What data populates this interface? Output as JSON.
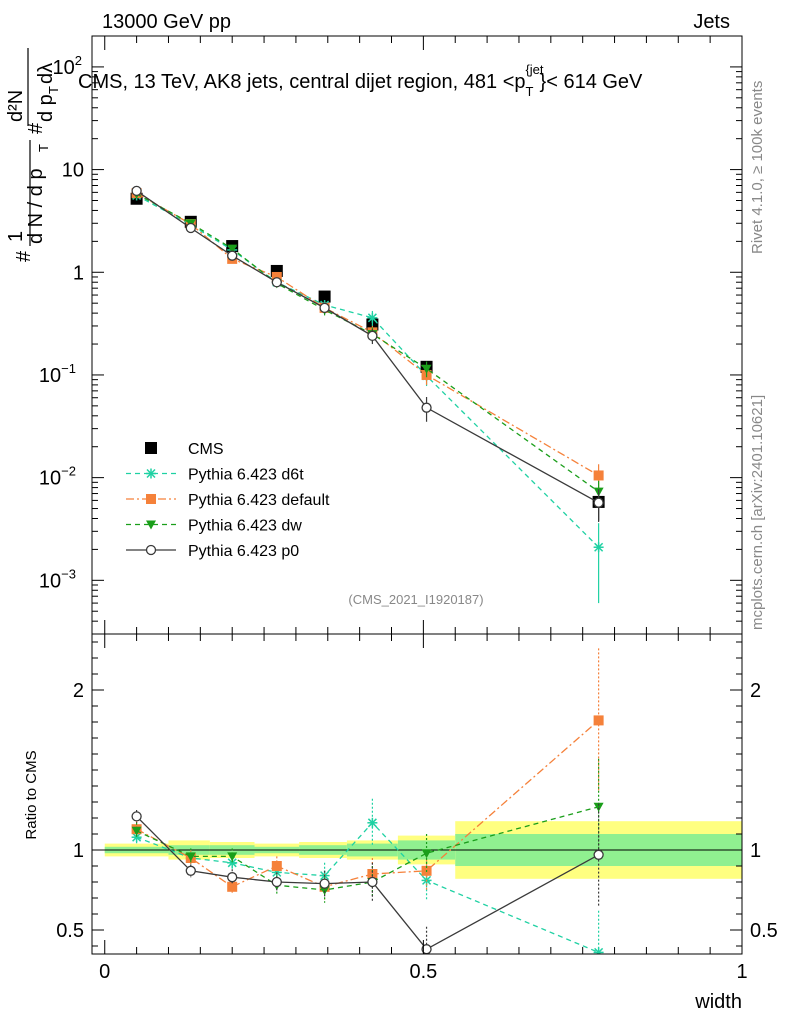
{
  "header": {
    "energy": "13000 GeV pp",
    "category": "Jets"
  },
  "chart_data": [
    {
      "type": "scatter",
      "title": "CMS, 13 TeV, AK8 jets, central dijet region, 481 < p_T^{jet} < 614 GeV",
      "title_parts": {
        "main": "CMS, 13 TeV, AK8 jets, central dijet region, 481 <p",
        "sub": "T",
        "sup": "{jet",
        "tail": "}< 614 GeV"
      },
      "ylabel_parts": {
        "num": "1",
        "den": "d N / d p",
        "den_sub": "T",
        "frac_top": "d²N",
        "frac_bot": "d p",
        "frac_bot_sub": "T",
        "frac_bot_tail": " dλ",
        "hash": "#"
      },
      "xlabel": "width",
      "yscale": "log",
      "xlim": [
        -0.02,
        1.0
      ],
      "ylim": [
        0.0003,
        200
      ],
      "yticks": [
        {
          "value": 100,
          "base": "10",
          "exp": "2"
        },
        {
          "value": 10,
          "base": "10",
          "exp": ""
        },
        {
          "value": 1,
          "base": "1",
          "exp": ""
        },
        {
          "value": 0.1,
          "base": "10",
          "exp": "−1"
        },
        {
          "value": 0.01,
          "base": "10",
          "exp": "−2"
        },
        {
          "value": 0.001,
          "base": "10",
          "exp": "−3"
        }
      ],
      "watermark": "(CMS_2021_I1920187)",
      "series": [
        {
          "name": "CMS",
          "color": "#000000",
          "style": "data",
          "x": [
            0.05,
            0.135,
            0.2,
            0.27,
            0.345,
            0.42,
            0.505,
            0.775
          ],
          "y": [
            5.2,
            3.1,
            1.8,
            1.03,
            0.58,
            0.31,
            0.12,
            0.0058
          ],
          "err": [
            0.2,
            0.1,
            0.08,
            0.05,
            0.03,
            0.03,
            0.015,
            0.002
          ]
        },
        {
          "name": "Pythia 6.423 d6t",
          "color": "#1fd1a3",
          "style": "dashed",
          "marker": "star",
          "x": [
            0.05,
            0.135,
            0.2,
            0.27,
            0.345,
            0.42,
            0.505,
            0.775
          ],
          "y": [
            5.6,
            2.9,
            1.65,
            0.8,
            0.48,
            0.36,
            0.098,
            0.0021
          ],
          "err": [
            0.2,
            0.1,
            0.08,
            0.05,
            0.05,
            0.06,
            0.02,
            0.0015
          ]
        },
        {
          "name": "Pythia 6.423 default",
          "color": "#f5813a",
          "style": "dashdot",
          "marker": "square",
          "x": [
            0.05,
            0.135,
            0.2,
            0.27,
            0.345,
            0.42,
            0.505,
            0.775
          ],
          "y": [
            5.9,
            2.95,
            1.35,
            0.9,
            0.45,
            0.26,
            0.1,
            0.0105
          ],
          "err": [
            0.2,
            0.1,
            0.08,
            0.05,
            0.05,
            0.04,
            0.02,
            0.003
          ]
        },
        {
          "name": "Pythia 6.423 dw",
          "color": "#1a9e1a",
          "style": "dashed",
          "marker": "triangle",
          "x": [
            0.05,
            0.135,
            0.2,
            0.27,
            0.345,
            0.42,
            0.505,
            0.775
          ],
          "y": [
            5.8,
            3.0,
            1.7,
            0.78,
            0.43,
            0.25,
            0.115,
            0.0073
          ],
          "err": [
            0.2,
            0.1,
            0.08,
            0.05,
            0.05,
            0.04,
            0.02,
            0.002
          ]
        },
        {
          "name": "Pythia 6.423 p0",
          "color": "#3a3a3a",
          "style": "solid",
          "marker": "circle",
          "x": [
            0.05,
            0.135,
            0.2,
            0.27,
            0.345,
            0.42,
            0.505,
            0.775
          ],
          "y": [
            6.2,
            2.7,
            1.45,
            0.8,
            0.45,
            0.24,
            0.048,
            0.0057
          ],
          "err": [
            0.2,
            0.1,
            0.08,
            0.05,
            0.05,
            0.04,
            0.013,
            0.002
          ]
        }
      ]
    },
    {
      "type": "line",
      "ylabel": "Ratio to CMS",
      "xlabel": "width",
      "xlim": [
        -0.02,
        1.0
      ],
      "ylim": [
        0.35,
        2.35
      ],
      "yticks": [
        0.5,
        1,
        2
      ],
      "xticks": [
        {
          "value": 0,
          "label": "0"
        },
        {
          "value": 0.5,
          "label": "0.5"
        },
        {
          "value": 1,
          "label": "1"
        }
      ],
      "bands": [
        {
          "x0": 0.0,
          "x1": 0.1,
          "inner": 0.02,
          "outer": 0.04
        },
        {
          "x0": 0.1,
          "x1": 0.165,
          "inner": 0.03,
          "outer": 0.06
        },
        {
          "x0": 0.165,
          "x1": 0.235,
          "inner": 0.03,
          "outer": 0.05
        },
        {
          "x0": 0.235,
          "x1": 0.305,
          "inner": 0.02,
          "outer": 0.04
        },
        {
          "x0": 0.305,
          "x1": 0.38,
          "inner": 0.03,
          "outer": 0.05
        },
        {
          "x0": 0.38,
          "x1": 0.46,
          "inner": 0.04,
          "outer": 0.06
        },
        {
          "x0": 0.46,
          "x1": 0.55,
          "inner": 0.06,
          "outer": 0.09
        },
        {
          "x0": 0.55,
          "x1": 1.0,
          "inner": 0.1,
          "outer": 0.18
        }
      ],
      "series": [
        {
          "name": "Pythia 6.423 d6t",
          "color": "#1fd1a3",
          "x": [
            0.05,
            0.135,
            0.2,
            0.27,
            0.345,
            0.42,
            0.505,
            0.775
          ],
          "y": [
            1.08,
            0.95,
            0.92,
            0.86,
            0.84,
            1.17,
            0.81,
            0.36
          ],
          "err": [
            0.05,
            0.05,
            0.05,
            0.06,
            0.08,
            0.15,
            0.12,
            0.26
          ]
        },
        {
          "name": "Pythia 6.423 default",
          "color": "#f5813a",
          "x": [
            0.05,
            0.135,
            0.2,
            0.27,
            0.345,
            0.42,
            0.505,
            0.775
          ],
          "y": [
            1.13,
            0.95,
            0.77,
            0.9,
            0.77,
            0.85,
            0.87,
            1.81
          ],
          "err": [
            0.05,
            0.05,
            0.05,
            0.06,
            0.08,
            0.1,
            0.12,
            0.45
          ]
        },
        {
          "name": "Pythia 6.423 dw",
          "color": "#1a9e1a",
          "x": [
            0.05,
            0.135,
            0.2,
            0.27,
            0.345,
            0.42,
            0.505,
            0.775
          ],
          "y": [
            1.12,
            0.96,
            0.96,
            0.78,
            0.75,
            0.8,
            0.98,
            1.27
          ],
          "err": [
            0.05,
            0.05,
            0.05,
            0.06,
            0.08,
            0.1,
            0.12,
            0.3
          ]
        },
        {
          "name": "Pythia 6.423 p0",
          "color": "#3a3a3a",
          "x": [
            0.05,
            0.135,
            0.2,
            0.27,
            0.345,
            0.42,
            0.505,
            0.775
          ],
          "y": [
            1.21,
            0.87,
            0.83,
            0.8,
            0.79,
            0.8,
            0.38,
            0.97
          ],
          "err": [
            0.04,
            0.04,
            0.05,
            0.06,
            0.08,
            0.12,
            0.14,
            0.32
          ]
        }
      ]
    }
  ],
  "side": {
    "rivet": "Rivet 4.1.0, ≥ 100k events",
    "mcplots": "mcplots.cern.ch [arXiv:2401.10621]"
  }
}
